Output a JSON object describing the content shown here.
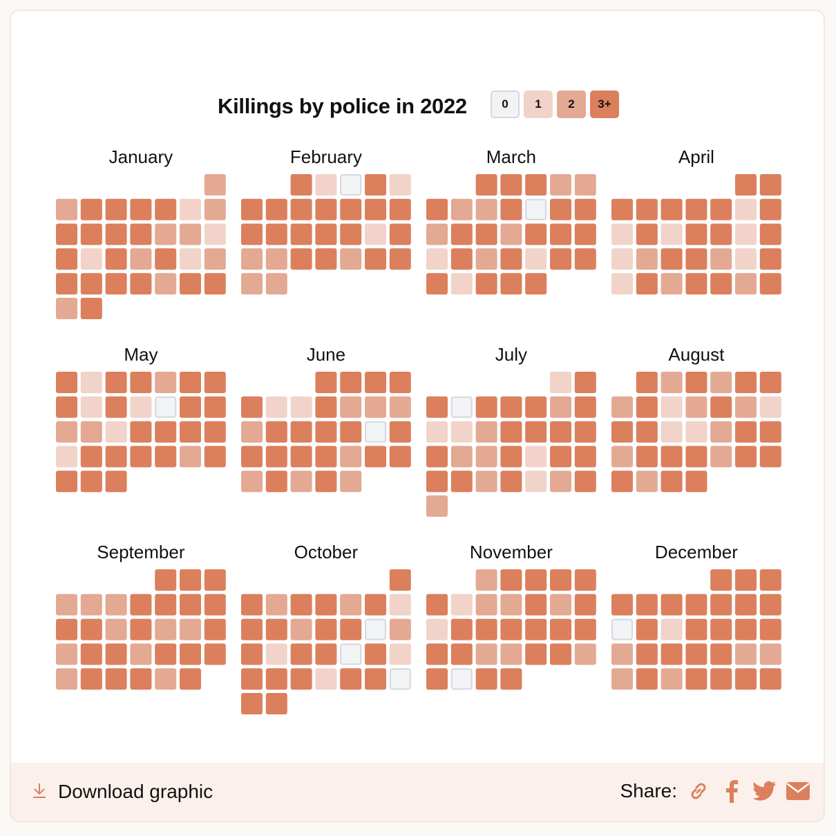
{
  "chart_data": {
    "type": "heatmap",
    "title": "Killings by police in 2022",
    "year": 2022,
    "legend": [
      "0",
      "1",
      "2",
      "3+"
    ],
    "colors": [
      "#f1f3f5",
      "#f1d3c9",
      "#e3a993",
      "#dc7f5d"
    ],
    "zero_border": "#d4d8dc",
    "months": [
      {
        "name": "January",
        "start_weekday": 6,
        "values": [
          2,
          2,
          3,
          3,
          3,
          3,
          1,
          2,
          3,
          3,
          3,
          3,
          2,
          2,
          1,
          3,
          1,
          3,
          2,
          3,
          1,
          2,
          3,
          3,
          3,
          3,
          2,
          3,
          3,
          2,
          3
        ]
      },
      {
        "name": "February",
        "start_weekday": 2,
        "values": [
          3,
          1,
          0,
          3,
          1,
          3,
          3,
          3,
          3,
          3,
          3,
          3,
          3,
          3,
          3,
          3,
          3,
          1,
          3,
          2,
          2,
          3,
          3,
          2,
          3,
          3,
          2,
          2
        ]
      },
      {
        "name": "March",
        "start_weekday": 2,
        "values": [
          3,
          3,
          3,
          2,
          2,
          3,
          2,
          2,
          3,
          0,
          3,
          3,
          2,
          3,
          3,
          2,
          3,
          3,
          3,
          1,
          3,
          2,
          3,
          1,
          3,
          3,
          3,
          1,
          3,
          3,
          3
        ]
      },
      {
        "name": "April",
        "start_weekday": 5,
        "values": [
          3,
          3,
          3,
          3,
          3,
          3,
          3,
          1,
          3,
          1,
          3,
          1,
          3,
          3,
          1,
          3,
          1,
          2,
          3,
          3,
          2,
          1,
          3,
          1,
          3,
          2,
          3,
          3,
          2,
          3
        ]
      },
      {
        "name": "May",
        "start_weekday": 0,
        "values": [
          3,
          1,
          3,
          3,
          2,
          3,
          3,
          3,
          1,
          3,
          1,
          0,
          3,
          3,
          2,
          2,
          1,
          3,
          3,
          3,
          3,
          1,
          3,
          3,
          3,
          3,
          2,
          3,
          3,
          3,
          3
        ]
      },
      {
        "name": "June",
        "start_weekday": 3,
        "values": [
          3,
          3,
          3,
          3,
          3,
          1,
          1,
          3,
          2,
          2,
          2,
          2,
          3,
          3,
          3,
          3,
          0,
          3,
          3,
          3,
          3,
          3,
          2,
          3,
          3,
          2,
          3,
          2,
          3,
          2
        ]
      },
      {
        "name": "July",
        "start_weekday": 5,
        "values": [
          1,
          3,
          3,
          0,
          3,
          3,
          3,
          2,
          3,
          1,
          1,
          2,
          3,
          3,
          3,
          3,
          3,
          2,
          2,
          3,
          1,
          3,
          3,
          3,
          3,
          2,
          3,
          1,
          2,
          3,
          2
        ]
      },
      {
        "name": "August",
        "start_weekday": 1,
        "values": [
          3,
          2,
          3,
          2,
          3,
          3,
          2,
          3,
          1,
          2,
          3,
          2,
          1,
          3,
          3,
          1,
          1,
          2,
          3,
          3,
          2,
          3,
          3,
          3,
          2,
          3,
          3,
          3,
          2,
          3,
          3
        ]
      },
      {
        "name": "September",
        "start_weekday": 4,
        "values": [
          3,
          3,
          3,
          2,
          2,
          2,
          3,
          3,
          3,
          3,
          3,
          3,
          2,
          3,
          2,
          2,
          3,
          2,
          3,
          3,
          2,
          3,
          3,
          3,
          2,
          3,
          3,
          3,
          2,
          3
        ]
      },
      {
        "name": "October",
        "start_weekday": 6,
        "values": [
          3,
          3,
          2,
          3,
          3,
          2,
          3,
          1,
          3,
          3,
          2,
          3,
          3,
          0,
          2,
          3,
          1,
          3,
          3,
          0,
          3,
          1,
          3,
          3,
          3,
          1,
          3,
          3,
          0,
          3,
          3
        ]
      },
      {
        "name": "November",
        "start_weekday": 2,
        "values": [
          2,
          3,
          3,
          3,
          3,
          3,
          1,
          2,
          2,
          3,
          2,
          3,
          1,
          3,
          3,
          3,
          3,
          3,
          3,
          3,
          3,
          2,
          2,
          3,
          3,
          2,
          3,
          0,
          3,
          3
        ]
      },
      {
        "name": "December",
        "start_weekday": 4,
        "values": [
          3,
          3,
          3,
          3,
          3,
          3,
          3,
          3,
          3,
          3,
          0,
          3,
          1,
          3,
          3,
          3,
          3,
          2,
          3,
          3,
          3,
          3,
          2,
          2,
          2,
          3,
          2,
          3,
          3,
          3,
          3
        ]
      }
    ]
  },
  "footer": {
    "download_label": "Download graphic",
    "share_label": "Share:",
    "accent_color": "#dc7f5d",
    "share_icons": [
      "link-icon",
      "facebook-icon",
      "twitter-icon",
      "email-icon"
    ]
  }
}
